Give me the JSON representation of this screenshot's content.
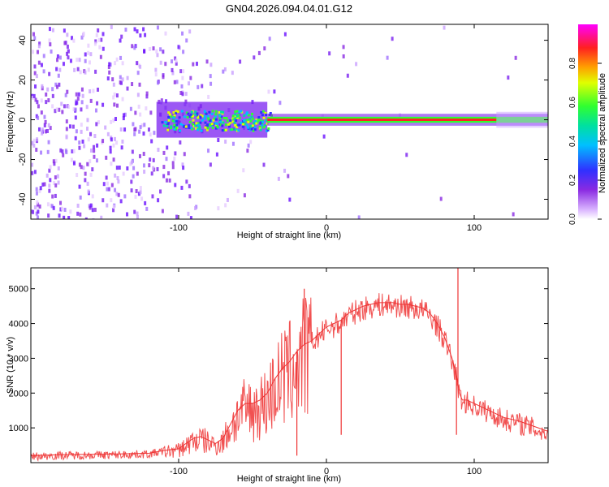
{
  "title": "GN04.2026.094.04.01.G12",
  "chart_data": [
    {
      "type": "heatmap",
      "xlabel": "Height of straight line (km)",
      "ylabel": "Frequency (Hz)",
      "xlim": [
        -200,
        150
      ],
      "ylim": [
        -50,
        48
      ],
      "xticks": [
        -100,
        0,
        100
      ],
      "yticks": [
        -40,
        -20,
        0,
        20,
        40
      ],
      "colorbar": {
        "label": "Normalized spectral amplitude",
        "range": [
          0,
          1
        ],
        "ticks": [
          0.0,
          0.2,
          0.4,
          0.6,
          0.8
        ]
      },
      "description_points": [
        {
          "x": -200,
          "noise": 1.0
        },
        {
          "x": -110,
          "noise": 0.9
        },
        {
          "x": -80,
          "noise": 0.25
        },
        {
          "x": -40,
          "noise": 0.05
        },
        {
          "x": 150,
          "noise": 0.0
        }
      ],
      "line_center_hz": 0
    },
    {
      "type": "line",
      "xlabel": "Height of straight line (km)",
      "ylabel": "SNR (10 * v/v)",
      "xlim": [
        -200,
        150
      ],
      "ylim": [
        0,
        5600
      ],
      "xticks": [
        -100,
        0,
        100
      ],
      "yticks": [
        1000,
        2000,
        3000,
        4000,
        5000
      ],
      "series": [
        {
          "name": "SNR",
          "color": "#ee3333",
          "x": [
            -200,
            -180,
            -160,
            -140,
            -120,
            -110,
            -100,
            -95,
            -90,
            -85,
            -80,
            -75,
            -70,
            -65,
            -60,
            -55,
            -50,
            -45,
            -40,
            -35,
            -30,
            -25,
            -20,
            -15,
            -10,
            -5,
            0,
            5,
            10,
            15,
            20,
            25,
            30,
            35,
            40,
            45,
            50,
            55,
            60,
            65,
            70,
            75,
            80,
            85,
            88,
            90,
            92,
            95,
            100,
            110,
            120,
            130,
            140,
            150
          ],
          "y": [
            200,
            230,
            240,
            250,
            270,
            350,
            400,
            550,
            700,
            750,
            650,
            550,
            700,
            1100,
            1500,
            1700,
            1700,
            1800,
            2000,
            2400,
            2700,
            2900,
            3200,
            3400,
            3500,
            3700,
            3900,
            4000,
            4100,
            4300,
            4400,
            4500,
            4550,
            4600,
            4600,
            4600,
            4550,
            4550,
            4500,
            4450,
            4300,
            4000,
            3600,
            3000,
            2500,
            2000,
            1800,
            1800,
            1700,
            1500,
            1300,
            1200,
            1050,
            900
          ]
        }
      ],
      "spikes": [
        {
          "x": -15,
          "y": 5000
        },
        {
          "x": 89,
          "y": 5600
        },
        {
          "x": -20,
          "y": 200
        },
        {
          "x": 10,
          "y": 800
        },
        {
          "x": 88,
          "y": 800
        }
      ]
    }
  ]
}
